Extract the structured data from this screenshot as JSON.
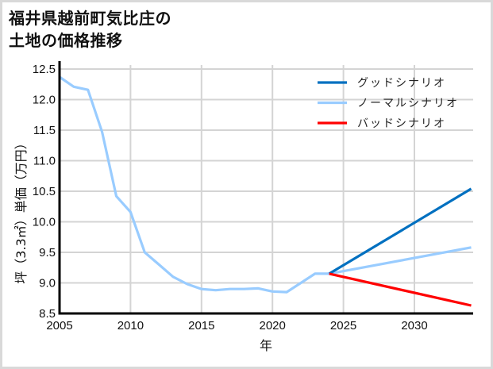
{
  "title_line1": "福井県越前町気比庄の",
  "title_line2": "土地の価格推移",
  "chart_data": {
    "type": "line",
    "title": "福井県越前町気比庄の土地の価格推移",
    "xlabel": "年",
    "ylabel": "坪（3.3㎡）単価（万円）",
    "xlim": [
      2005,
      2034
    ],
    "ylim": [
      8.5,
      12.5
    ],
    "xticks": [
      2005,
      2010,
      2015,
      2020,
      2025,
      2030
    ],
    "yticks": [
      8.5,
      9.0,
      9.5,
      10.0,
      10.5,
      11.0,
      11.5,
      12.0,
      12.5
    ],
    "ytick_labels": [
      "8.5",
      "9.0",
      "9.5",
      "10.0",
      "10.5",
      "11.0",
      "11.5",
      "12.0",
      "12.5"
    ],
    "grid": true,
    "legend_position": "upper right",
    "series": [
      {
        "name": "グッドシナリオ",
        "color": "#0070c0",
        "x": [
          2024,
          2034
        ],
        "y": [
          9.15,
          10.54
        ]
      },
      {
        "name": "ノーマルシナリオ",
        "color": "#99ccff",
        "x": [
          2005,
          2006,
          2007,
          2008,
          2009,
          2010,
          2011,
          2012,
          2013,
          2014,
          2015,
          2016,
          2017,
          2018,
          2019,
          2020,
          2021,
          2022,
          2023,
          2024,
          2034
        ],
        "y": [
          12.37,
          12.21,
          12.16,
          11.47,
          10.42,
          10.16,
          9.5,
          9.3,
          9.1,
          8.98,
          8.9,
          8.88,
          8.9,
          8.9,
          8.91,
          8.86,
          8.85,
          9.0,
          9.15,
          9.15,
          9.58
        ]
      },
      {
        "name": "バッドシナリオ",
        "color": "#ff0000",
        "x": [
          2024,
          2034
        ],
        "y": [
          9.15,
          8.63
        ]
      }
    ]
  }
}
